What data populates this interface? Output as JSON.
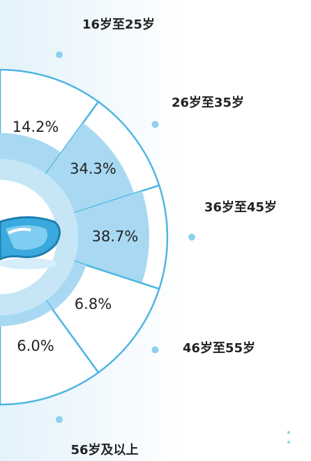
{
  "chart_data": {
    "type": "pie",
    "categories": [
      "16岁至25岁",
      "26岁至35岁",
      "36岁至45岁",
      "46岁至55岁",
      "56岁及以上"
    ],
    "values": [
      14.2,
      34.3,
      38.7,
      6.8,
      6.0
    ],
    "value_labels": [
      "14.2%",
      "34.3%",
      "38.7%",
      "6.8%",
      "6.0%"
    ],
    "color": "#a9d9f2"
  }
}
